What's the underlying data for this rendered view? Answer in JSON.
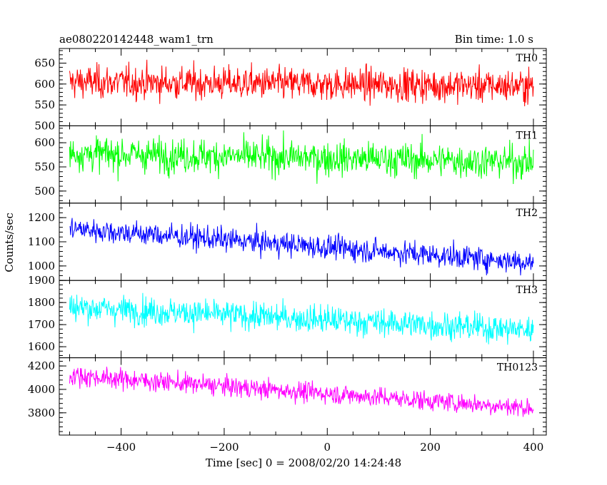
{
  "chart_data": {
    "type": "line",
    "title": "ae080220142448_wam1_trn",
    "bin_time": "Bin time: 1.0 s",
    "xlabel": "Time [sec] 0 = 2008/02/20 14:24:48",
    "ylabel": "Counts/sec",
    "xlim": [
      -520,
      425
    ],
    "x_range": [
      -500,
      400
    ],
    "bin_seconds": 1.0,
    "x_ticks": [
      -400,
      -200,
      0,
      200,
      400
    ],
    "x_tick_labels": [
      "−400",
      "−200",
      "0",
      "200",
      "400"
    ],
    "grid": false,
    "panels": [
      {
        "label": "TH0",
        "color": "#ff0000",
        "ylim": [
          500,
          685
        ],
        "y_ticks": [
          500,
          550,
          600,
          650
        ],
        "y_tick_labels": [
          "500",
          "550",
          "600",
          "650"
        ],
        "start_mean": 605,
        "end_mean": 595,
        "spread": 28
      },
      {
        "label": "TH1",
        "color": "#00ff00",
        "ylim": [
          475,
          635
        ],
        "y_ticks": [
          500,
          550,
          600
        ],
        "y_tick_labels": [
          "500",
          "550",
          "600"
        ],
        "start_mean": 578,
        "end_mean": 560,
        "spread": 25
      },
      {
        "label": "TH2",
        "color": "#0000ff",
        "ylim": [
          940,
          1260
        ],
        "y_ticks": [
          1000,
          1100,
          1200
        ],
        "y_tick_labels": [
          "1000",
          "1100",
          "1200"
        ],
        "start_mean": 1155,
        "end_mean": 1015,
        "spread": 35
      },
      {
        "label": "TH3",
        "color": "#00ffff",
        "ylim": [
          1550,
          1900
        ],
        "y_ticks": [
          1600,
          1700,
          1800,
          1900
        ],
        "y_tick_labels": [
          "1600",
          "1700",
          "1800",
          "1900"
        ],
        "start_mean": 1780,
        "end_mean": 1675,
        "spread": 45
      },
      {
        "label": "TH0123",
        "color": "#ff00ff",
        "ylim": [
          3610,
          4270
        ],
        "y_ticks": [
          3800,
          4000,
          4200
        ],
        "y_tick_labels": [
          "3800",
          "4000",
          "4200"
        ],
        "start_mean": 4120,
        "end_mean": 3840,
        "spread": 60
      }
    ]
  }
}
